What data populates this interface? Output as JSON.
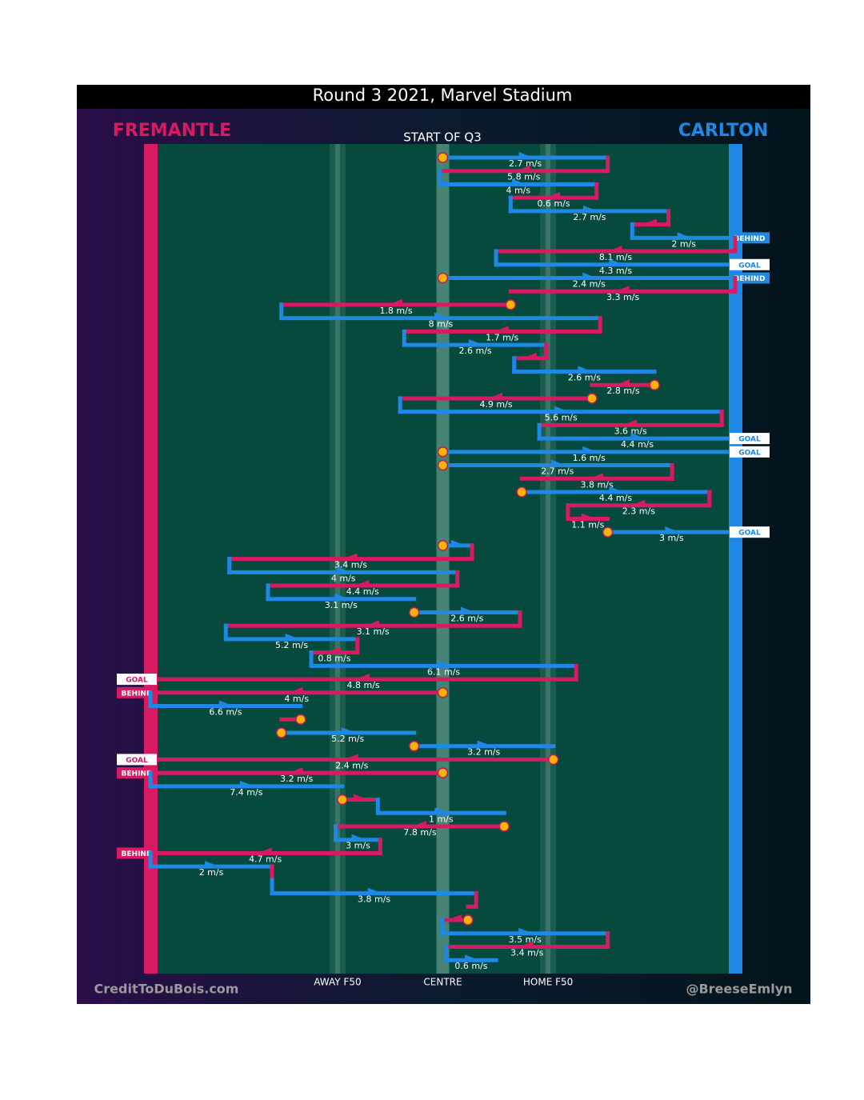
{
  "chart_data": {
    "type": "possession-flow",
    "title": "Round 3 2021, Marvel Stadium",
    "subtitle": "START OF Q3",
    "credit_left": "CreditToDuBois.com",
    "credit_right": "@BreeseEmlyn",
    "teams": [
      {
        "name": "FREMANTLE",
        "color": "#d81b60"
      },
      {
        "name": "CARLTON",
        "color": "#1e88e5"
      }
    ],
    "xlim": [
      0,
      100
    ],
    "xticks": [
      {
        "value": 32,
        "label": "AWAY F50"
      },
      {
        "value": 50,
        "label": "CENTRE"
      },
      {
        "value": 68,
        "label": "HOME F50"
      }
    ],
    "moves": [
      {
        "team": 1,
        "from": 50,
        "to": 78.2,
        "speed": "2.7 m/s",
        "stoppage": true
      },
      {
        "team": 0,
        "from": 78.2,
        "to": 49.5,
        "speed": "5.8 m/s"
      },
      {
        "team": 1,
        "from": 49.5,
        "to": 76.3,
        "speed": "4 m/s"
      },
      {
        "team": 0,
        "from": 76.3,
        "to": 61.6,
        "speed": "0.6 m/s"
      },
      {
        "team": 1,
        "from": 61.6,
        "to": 88.6,
        "speed": "2.7 m/s"
      },
      {
        "team": 0,
        "from": 88.6,
        "to": 82.4,
        "speed": null
      },
      {
        "team": 1,
        "from": 82.4,
        "to": 100,
        "speed": "2 m/s",
        "outcome": "BEHIND"
      },
      {
        "team": 0,
        "from": 100,
        "to": 59.1,
        "speed": "8.1 m/s"
      },
      {
        "team": 1,
        "from": 59.1,
        "to": 100,
        "speed": "4.3 m/s",
        "outcome": "GOAL"
      },
      {
        "team": 1,
        "from": 50,
        "to": 100,
        "speed": "2.4 m/s",
        "stoppage": true,
        "outcome": "BEHIND"
      },
      {
        "team": 0,
        "from": 100,
        "to": 61.6,
        "speed": "3.3 m/s"
      },
      {
        "team": 0,
        "from": 61.6,
        "to": 22.4,
        "speed": "1.8 m/s",
        "stoppage": true
      },
      {
        "team": 1,
        "from": 22.4,
        "to": 76.9,
        "speed": "8 m/s"
      },
      {
        "team": 0,
        "from": 76.9,
        "to": 43.4,
        "speed": "1.7 m/s"
      },
      {
        "team": 1,
        "from": 43.4,
        "to": 67.7,
        "speed": "2.6 m/s"
      },
      {
        "team": 0,
        "from": 67.7,
        "to": 62.2,
        "speed": null
      },
      {
        "team": 1,
        "from": 62.2,
        "to": 86.2,
        "speed": "2.6 m/s"
      },
      {
        "team": 0,
        "from": 86.2,
        "to": 75.5,
        "speed": "2.8 m/s",
        "stoppage": true
      },
      {
        "team": 0,
        "from": 75.5,
        "to": 42.7,
        "speed": "4.9 m/s",
        "stoppage": true
      },
      {
        "team": 1,
        "from": 42.7,
        "to": 97.7,
        "speed": "5.6 m/s"
      },
      {
        "team": 0,
        "from": 97.7,
        "to": 66.5,
        "speed": "3.6 m/s"
      },
      {
        "team": 1,
        "from": 66.5,
        "to": 100,
        "speed": "4.4 m/s",
        "outcome": "GOAL"
      },
      {
        "team": 1,
        "from": 50,
        "to": 100,
        "speed": "1.6 m/s",
        "stoppage": true,
        "outcome": "GOAL"
      },
      {
        "team": 1,
        "from": 50,
        "to": 89.2,
        "speed": "2.7 m/s",
        "stoppage": true
      },
      {
        "team": 0,
        "from": 89.2,
        "to": 63.5,
        "speed": "3.8 m/s"
      },
      {
        "team": 1,
        "from": 63.5,
        "to": 95.6,
        "speed": "4.4 m/s",
        "stoppage": true
      },
      {
        "team": 0,
        "from": 95.6,
        "to": 71.4,
        "speed": "2.3 m/s"
      },
      {
        "team": 0,
        "from": 71.4,
        "to": 78.2,
        "speed": "1.1 m/s"
      },
      {
        "team": 1,
        "from": 78.2,
        "to": 100,
        "speed": "3 m/s",
        "stoppage": true,
        "outcome": "GOAL"
      },
      {
        "team": 1,
        "from": 50,
        "to": 55,
        "speed": null,
        "stoppage": true
      },
      {
        "team": 0,
        "from": 55,
        "to": 13.5,
        "speed": "3.4 m/s"
      },
      {
        "team": 1,
        "from": 13.5,
        "to": 52.5,
        "speed": "4 m/s"
      },
      {
        "team": 0,
        "from": 52.5,
        "to": 20.1,
        "speed": "4.4 m/s"
      },
      {
        "team": 1,
        "from": 20.1,
        "to": 45.1,
        "speed": "3.1 m/s"
      },
      {
        "team": 1,
        "from": 45.1,
        "to": 63.2,
        "speed": "2.6 m/s",
        "stoppage": true
      },
      {
        "team": 0,
        "from": 63.2,
        "to": 12.9,
        "speed": "3.1 m/s"
      },
      {
        "team": 1,
        "from": 12.9,
        "to": 35.4,
        "speed": "5.2 m/s"
      },
      {
        "team": 0,
        "from": 35.4,
        "to": 27.5,
        "speed": "0.8 m/s"
      },
      {
        "team": 1,
        "from": 27.5,
        "to": 72.8,
        "speed": "6.1 m/s"
      },
      {
        "team": 0,
        "from": 72.8,
        "to": 0,
        "speed": "4.8 m/s",
        "outcome": "GOAL"
      },
      {
        "team": 0,
        "from": 50,
        "to": 0,
        "speed": "4 m/s",
        "stoppage": true,
        "outcome": "BEHIND"
      },
      {
        "team": 1,
        "from": 0,
        "to": 25.7,
        "speed": "6.6 m/s"
      },
      {
        "team": 0,
        "from": 25.7,
        "to": 22.4,
        "speed": null,
        "stoppage": true
      },
      {
        "team": 1,
        "from": 22.4,
        "to": 45.1,
        "speed": "5.2 m/s",
        "stoppage": true
      },
      {
        "team": 1,
        "from": 45.1,
        "to": 68.9,
        "speed": "3.2 m/s",
        "stoppage": true
      },
      {
        "team": 0,
        "from": 68.9,
        "to": 0,
        "speed": "2.4 m/s",
        "stoppage": true,
        "outcome": "GOAL"
      },
      {
        "team": 0,
        "from": 50,
        "to": 0,
        "speed": "3.2 m/s",
        "stoppage": true,
        "outcome": "BEHIND"
      },
      {
        "team": 1,
        "from": 0,
        "to": 32.8,
        "speed": "7.4 m/s"
      },
      {
        "team": 0,
        "from": 32.8,
        "to": 38.9,
        "speed": null,
        "stoppage": true
      },
      {
        "team": 1,
        "from": 38.9,
        "to": 60.5,
        "speed": "1 m/s"
      },
      {
        "team": 0,
        "from": 60.5,
        "to": 31.7,
        "speed": "7.8 m/s",
        "stoppage": true
      },
      {
        "team": 1,
        "from": 31.7,
        "to": 39.3,
        "speed": "3 m/s"
      },
      {
        "team": 0,
        "from": 39.3,
        "to": 0,
        "speed": "4.7 m/s",
        "outcome": "BEHIND"
      },
      {
        "team": 1,
        "from": 0,
        "to": 20.8,
        "speed": "2 m/s"
      },
      {
        "team": 0,
        "from": 20.8,
        "to": 20.8,
        "speed": null
      },
      {
        "team": 1,
        "from": 20.8,
        "to": 55.7,
        "speed": "3.8 m/s"
      },
      {
        "team": 0,
        "from": 55.7,
        "to": 54.3,
        "speed": null
      },
      {
        "team": 0,
        "from": 54.3,
        "to": 49.9,
        "speed": null,
        "stoppage": true
      },
      {
        "team": 1,
        "from": 49.9,
        "to": 78.2,
        "speed": "3.5 m/s"
      },
      {
        "team": 0,
        "from": 78.2,
        "to": 50.6,
        "speed": "3.4 m/s"
      },
      {
        "team": 1,
        "from": 50.6,
        "to": 59.1,
        "speed": "0.6 m/s"
      }
    ]
  }
}
